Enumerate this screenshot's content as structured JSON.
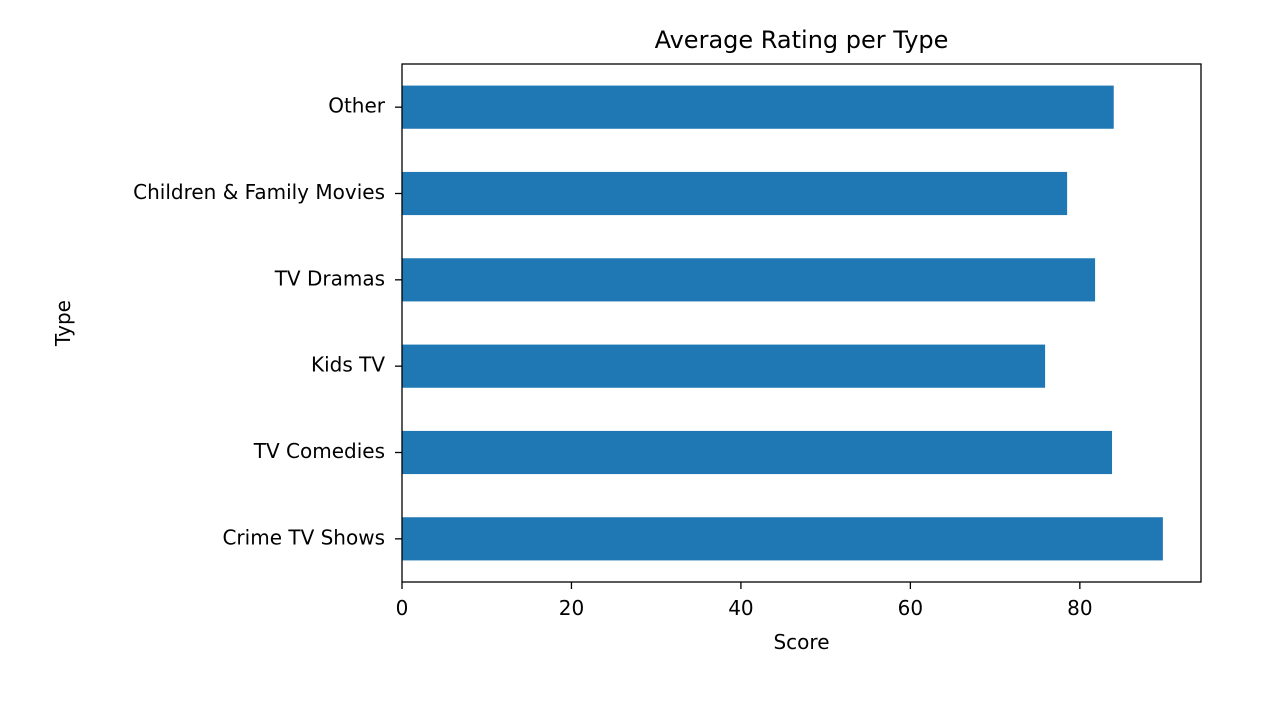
{
  "chart_data": {
    "type": "bar",
    "orientation": "horizontal",
    "title": "Average Rating per Type",
    "xlabel": "Score",
    "ylabel": "Type",
    "categories": [
      "Crime TV Shows",
      "TV Comedies",
      "Kids TV",
      "TV Dramas",
      "Children & Family Movies",
      "Other"
    ],
    "values": [
      89.8,
      83.8,
      75.9,
      81.8,
      78.5,
      84.0
    ],
    "xlim": [
      0,
      94.3
    ],
    "xticks": [
      0,
      20,
      40,
      60,
      80
    ],
    "bar_color": "#1f77b4",
    "grid": false,
    "legend": false
  }
}
